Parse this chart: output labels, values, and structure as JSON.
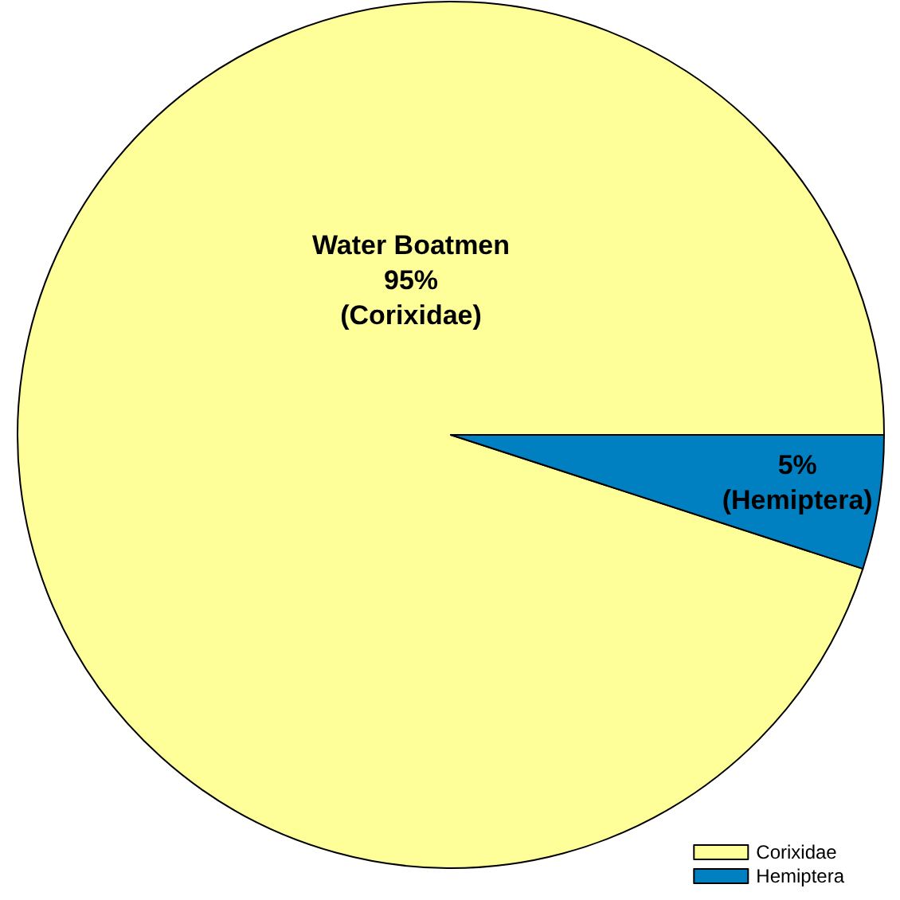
{
  "chart_data": {
    "type": "pie",
    "categories": [
      "Corixidae",
      "Hemiptera"
    ],
    "values": [
      95,
      5
    ],
    "colors": [
      "#ffff99",
      "#0080c0"
    ],
    "value_labels": [
      "Water Boatmen\n95%\n(Corixidae)",
      "5%\n(Hemiptera)"
    ],
    "legend": "bottom right"
  }
}
